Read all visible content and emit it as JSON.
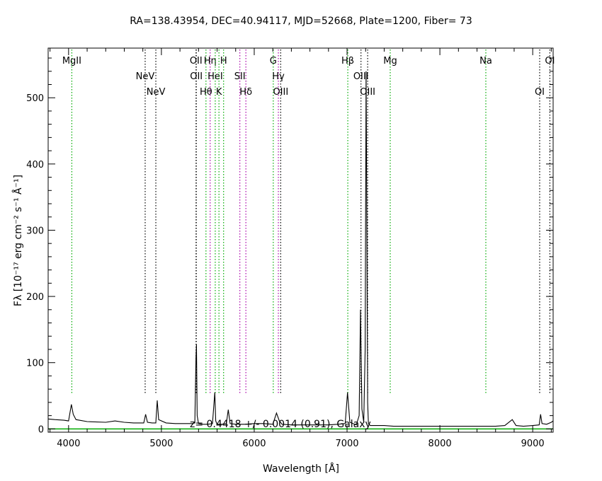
{
  "chart_data": {
    "type": "line",
    "title": "RA=138.43954, DEC=40.94117, MJD=52668, Plate=1200, Fiber= 73",
    "xlabel": "Wavelength [Å]",
    "ylabel": "Fλ [10⁻¹⁷ erg cm⁻² s⁻¹ Å⁻¹]",
    "xlim": [
      3780,
      9220
    ],
    "ylim": [
      -5,
      575
    ],
    "x_ticks": [
      4000,
      5000,
      6000,
      7000,
      8000,
      9000
    ],
    "y_ticks": [
      0,
      100,
      200,
      300,
      400,
      500
    ],
    "annotation": "z= 0.4418 +/- 0.0014 (0.91), Galaxy",
    "colors": {
      "spectrum": "#000000",
      "baseline": "#00aa00",
      "emission_line": "#000000",
      "absorption_line": "#00aa00",
      "blend_line": "#aa00aa"
    },
    "series": [
      {
        "x": [
          3780,
          3850,
          3950,
          4000,
          4030,
          4050,
          4080,
          4200,
          4400,
          4500,
          4600,
          4700,
          4810,
          4830,
          4850,
          4900,
          4940,
          4955,
          4970,
          5050,
          5150,
          5250,
          5330,
          5360,
          5372,
          5378,
          5385,
          5400,
          5450,
          5500,
          5550,
          5575,
          5585,
          5600,
          5650,
          5700,
          5720,
          5740,
          5800,
          5900,
          6000,
          6100,
          6200,
          6240,
          6270,
          6300,
          6400,
          6500,
          6600,
          6700,
          6800,
          6900,
          6980,
          7005,
          7030,
          7100,
          7130,
          7145,
          7160,
          7180,
          7195,
          7205,
          7215,
          7222,
          7230,
          7250,
          7300,
          7400,
          7500,
          7600,
          7700,
          7800,
          7900,
          8000,
          8100,
          8200,
          8300,
          8400,
          8500,
          8600,
          8700,
          8780,
          8820,
          8900,
          9000,
          9070,
          9085,
          9100,
          9150,
          9200,
          9220
        ],
        "y": [
          15,
          14,
          13,
          12,
          37,
          22,
          14,
          11,
          10,
          12,
          10,
          9,
          9,
          22,
          10,
          9,
          9,
          43,
          14,
          9,
          8,
          8,
          8,
          9,
          107,
          127,
          20,
          8,
          7,
          7,
          8,
          55,
          12,
          7,
          7,
          8,
          29,
          8,
          7,
          7,
          8,
          8,
          7,
          24,
          12,
          7,
          6,
          6,
          6,
          6,
          6,
          7,
          8,
          55,
          10,
          6,
          20,
          180,
          30,
          10,
          120,
          540,
          260,
          40,
          8,
          5,
          5,
          5,
          4,
          4,
          4,
          4,
          4,
          4,
          4,
          4,
          4,
          4,
          4,
          4,
          5,
          14,
          5,
          4,
          5,
          6,
          22,
          8,
          7,
          10,
          12
        ]
      }
    ],
    "spectral_lines": [
      {
        "wave": 4035,
        "label": "MgII",
        "row": 1,
        "kind": "absorption"
      },
      {
        "wave": 4825,
        "label": "NeV",
        "row": 2,
        "kind": "emission"
      },
      {
        "wave": 4940,
        "label": "NeV",
        "row": 3,
        "kind": "emission"
      },
      {
        "wave": 5373,
        "label": "OII",
        "row": 1,
        "kind": "emission"
      },
      {
        "wave": 5376,
        "label": "OII",
        "row": 2,
        "kind": "emission"
      },
      {
        "wave": 5480,
        "label": "Hθ",
        "row": 3,
        "kind": "absorption"
      },
      {
        "wave": 5525,
        "label": "Hη",
        "row": 1,
        "kind": "blend"
      },
      {
        "wave": 5580,
        "label": "HeI",
        "row": 2,
        "kind": "absorption"
      },
      {
        "wave": 5620,
        "label": "K",
        "row": 3,
        "kind": "absorption"
      },
      {
        "wave": 5670,
        "label": "H",
        "row": 1,
        "kind": "absorption"
      },
      {
        "wave": 5845,
        "label": "SII",
        "row": 2,
        "kind": "blend"
      },
      {
        "wave": 5910,
        "label": "Hδ",
        "row": 3,
        "kind": "blend"
      },
      {
        "wave": 6205,
        "label": "G",
        "row": 1,
        "kind": "absorption"
      },
      {
        "wave": 6260,
        "label": "Hγ",
        "row": 2,
        "kind": "blend"
      },
      {
        "wave": 6285,
        "label": "OIII",
        "row": 3,
        "kind": "emission"
      },
      {
        "wave": 7008,
        "label": "Hβ",
        "row": 1,
        "kind": "absorption"
      },
      {
        "wave": 7150,
        "label": "OIII",
        "row": 2,
        "kind": "emission"
      },
      {
        "wave": 7222,
        "label": "OIII",
        "row": 3,
        "kind": "emission"
      },
      {
        "wave": 7465,
        "label": "Mg",
        "row": 1,
        "kind": "absorption"
      },
      {
        "wave": 8495,
        "label": "Na",
        "row": 1,
        "kind": "absorption"
      },
      {
        "wave": 9075,
        "label": "OI",
        "row": 3,
        "kind": "emission"
      },
      {
        "wave": 9185,
        "label": "OI",
        "row": 1,
        "kind": "emission"
      }
    ]
  }
}
